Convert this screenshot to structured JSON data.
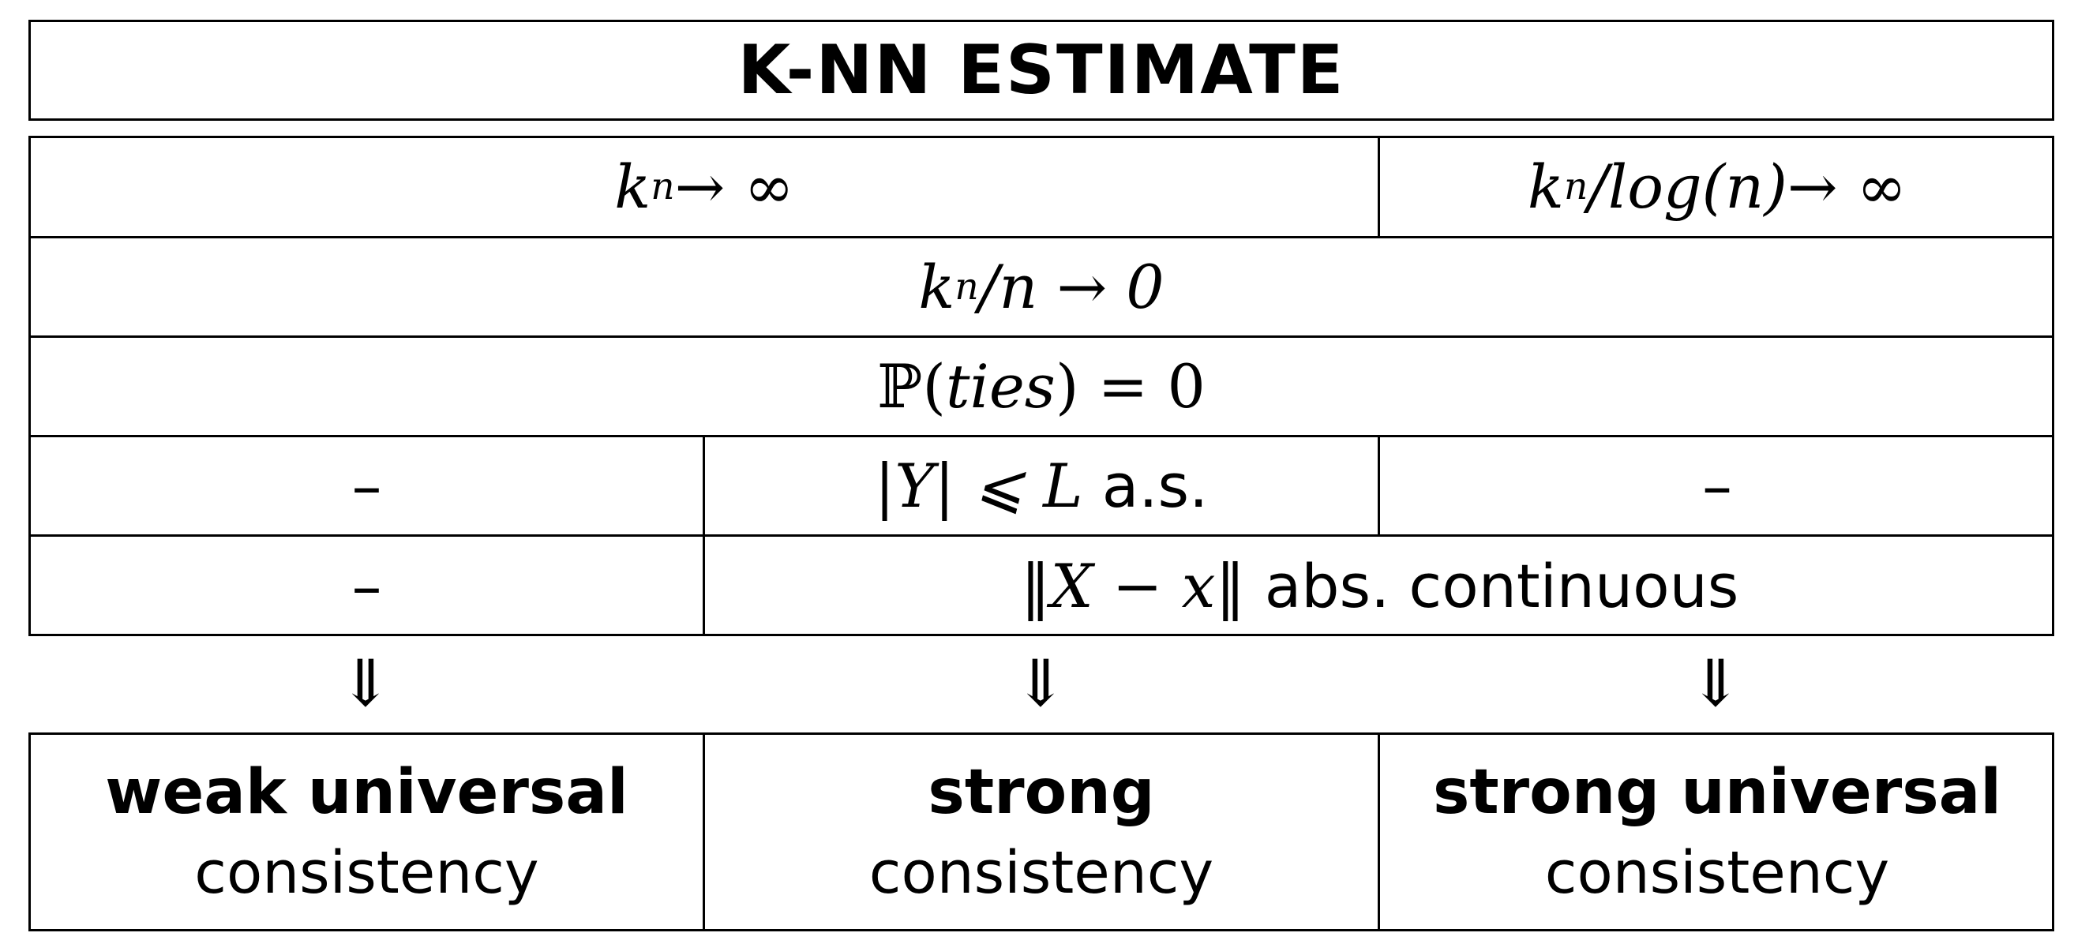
{
  "title": "K-NN ESTIMATE",
  "rows": {
    "r1": {
      "left": {
        "k": "k",
        "n": "n",
        "rest": " → ∞"
      },
      "right": {
        "k": "k",
        "n": "n",
        "mid": "/log(n)",
        "rest": " → ∞"
      }
    },
    "r2": {
      "k": "k",
      "n": "n",
      "rest": "/n → 0"
    },
    "r3": {
      "p": "ℙ",
      "open": "(",
      "ties": "ties",
      "close": ") = 0"
    },
    "r4": {
      "left": "–",
      "mid_math": "|Y| ⩽ L",
      "mid_text": " a.s.",
      "right": "–"
    },
    "r5": {
      "left": "–",
      "math": "‖X − x‖",
      "text": " abs. continuous"
    }
  },
  "arrows": [
    "⇓",
    "⇓",
    "⇓"
  ],
  "results": [
    {
      "bold": "weak universal",
      "normal": "consistency"
    },
    {
      "bold": "strong",
      "normal": "consistency"
    },
    {
      "bold": "strong universal",
      "normal": "consistency"
    }
  ]
}
